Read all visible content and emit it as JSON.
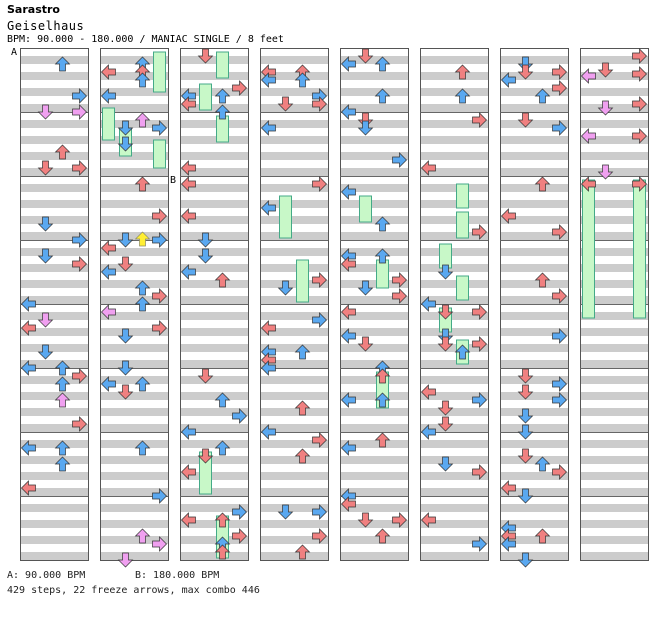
{
  "header": {
    "artist": "Sarastro",
    "title": "Geiselhaus",
    "bpm_line": "BPM: 90.000 - 180.000 / MANIAC SINGLE / 8 feet"
  },
  "markers": {
    "a": "A",
    "b": "B"
  },
  "footer": {
    "bpm_a": "A: 90.000 BPM",
    "bpm_b": "B: 180.000 BPM",
    "stats": "429 steps, 22 freeze arrows, max combo 446"
  },
  "colors": {
    "left": "#f08080",
    "down": "#5aa8f0",
    "up": "#f08080",
    "right": "#f08080",
    "eighth": "#5aa8f0",
    "sixteenth": "#f0a0f0",
    "freeze": "#c8f8c8",
    "stripe": "#cccccc"
  },
  "chart_data": {
    "type": "step-chart",
    "columns": 8,
    "measures_per_column": 8,
    "freeze_arrows": 22,
    "steps": 429,
    "max_combo": 446,
    "bpm_changes": [
      {
        "label": "A",
        "bpm": 90.0
      },
      {
        "label": "B",
        "bpm": 180.0
      }
    ]
  }
}
